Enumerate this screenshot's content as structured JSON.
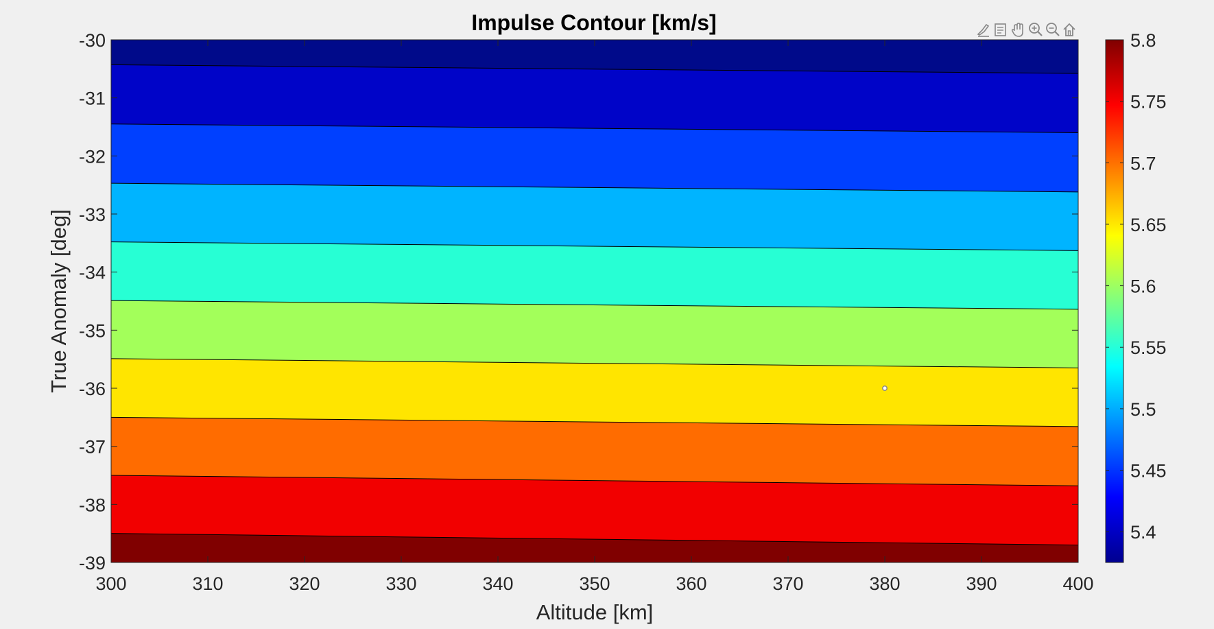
{
  "toolbar": {
    "icons": [
      "brush-icon",
      "datatip-icon",
      "pan-hand-icon",
      "zoom-in-icon",
      "zoom-out-icon",
      "home-icon"
    ]
  },
  "chart_data": {
    "type": "contour",
    "title": "Impulse Contour [km/s]",
    "xlabel": "Altitude [km]",
    "ylabel": "True Anomaly [deg]",
    "xlim": [
      300,
      400
    ],
    "ylim": [
      -39,
      -30
    ],
    "x_ticks": [
      "300",
      "310",
      "320",
      "330",
      "340",
      "350",
      "360",
      "370",
      "380",
      "390",
      "400"
    ],
    "y_ticks": [
      "-30",
      "-31",
      "-32",
      "-33",
      "-34",
      "-35",
      "-36",
      "-37",
      "-38",
      "-39"
    ],
    "contour_lines": [
      {
        "y_at_300": -30.43,
        "y_at_400": -30.58
      },
      {
        "y_at_300": -31.45,
        "y_at_400": -31.6
      },
      {
        "y_at_300": -32.47,
        "y_at_400": -32.62
      },
      {
        "y_at_300": -33.48,
        "y_at_400": -33.63
      },
      {
        "y_at_300": -34.49,
        "y_at_400": -34.64
      },
      {
        "y_at_300": -35.49,
        "y_at_400": -35.65
      },
      {
        "y_at_300": -36.5,
        "y_at_400": -36.66
      },
      {
        "y_at_300": -37.5,
        "y_at_400": -37.68
      },
      {
        "y_at_300": -38.5,
        "y_at_400": -38.7
      }
    ],
    "band_colors": [
      "#000a8a",
      "#0004c8",
      "#0040ff",
      "#00b4ff",
      "#27ffd4",
      "#a3ff5a",
      "#ffe500",
      "#ff6c00",
      "#f20000",
      "#800000"
    ],
    "marker": {
      "x": 380,
      "y": -36
    },
    "colorbar": {
      "range": [
        5.375,
        5.8
      ],
      "ticks": [
        "5.4",
        "5.45",
        "5.5",
        "5.55",
        "5.6",
        "5.65",
        "5.7",
        "5.75",
        "5.8"
      ],
      "tick_values": [
        5.4,
        5.45,
        5.5,
        5.55,
        5.6,
        5.65,
        5.7,
        5.75,
        5.8
      ],
      "colormap": "jet"
    },
    "grid": false,
    "legend": "none"
  }
}
